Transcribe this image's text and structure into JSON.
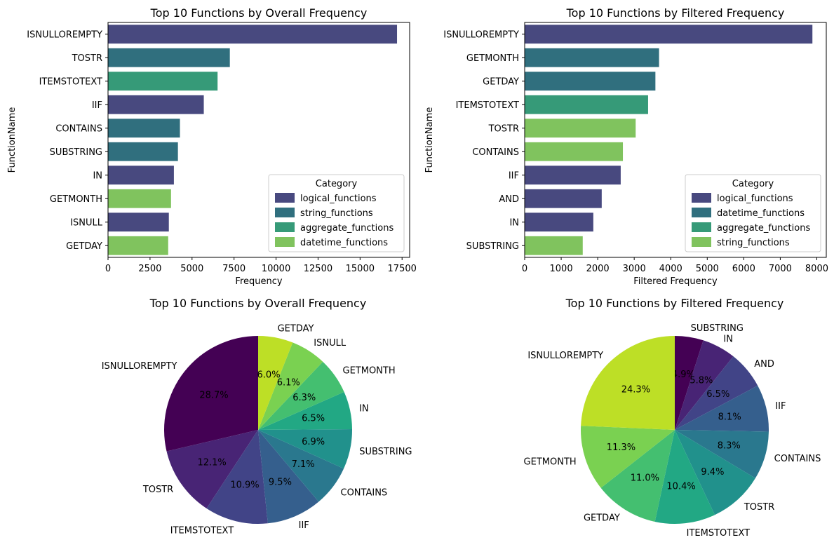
{
  "chart_data": [
    {
      "type": "bar",
      "orientation": "horizontal",
      "title": "Top 10 Functions by Overall Frequency",
      "xlabel": "Frequency",
      "ylabel": "FunctionName",
      "xlim": [
        0,
        17950
      ],
      "xticks": [
        0,
        2500,
        5000,
        7500,
        10000,
        12500,
        15000,
        17500
      ],
      "grid": false,
      "legend_title": "Category",
      "legend_position": "lower-right",
      "legend": [
        {
          "name": "logical_functions",
          "color": "#48497F"
        },
        {
          "name": "string_functions",
          "color": "#306F7E"
        },
        {
          "name": "aggregate_functions",
          "color": "#369A78"
        },
        {
          "name": "datetime_functions",
          "color": "#80C35E"
        }
      ],
      "categories": [
        "ISNULLOREMPTY",
        "TOSTR",
        "ITEMSTOTEXT",
        "IIF",
        "CONTAINS",
        "SUBSTRING",
        "IN",
        "GETMONTH",
        "ISNULL",
        "GETDAY"
      ],
      "values": [
        17200,
        7250,
        6520,
        5700,
        4280,
        4160,
        3920,
        3750,
        3620,
        3580
      ],
      "bar_categories": [
        "logical_functions",
        "string_functions",
        "aggregate_functions",
        "logical_functions",
        "string_functions",
        "string_functions",
        "logical_functions",
        "datetime_functions",
        "logical_functions",
        "datetime_functions"
      ]
    },
    {
      "type": "bar",
      "orientation": "horizontal",
      "title": "Top 10 Functions by Filtered Frequency",
      "xlabel": "Filtered Frequency",
      "ylabel": "FunctionName",
      "xlim": [
        0,
        8260
      ],
      "xticks": [
        0,
        1000,
        2000,
        3000,
        4000,
        5000,
        6000,
        7000,
        8000
      ],
      "grid": false,
      "legend_title": "Category",
      "legend_position": "lower-right",
      "legend": [
        {
          "name": "logical_functions",
          "color": "#48497F"
        },
        {
          "name": "datetime_functions",
          "color": "#306F7E"
        },
        {
          "name": "aggregate_functions",
          "color": "#369A78"
        },
        {
          "name": "string_functions",
          "color": "#80C35E"
        }
      ],
      "categories": [
        "ISNULLOREMPTY",
        "GETMONTH",
        "GETDAY",
        "ITEMSTOTEXT",
        "TOSTR",
        "CONTAINS",
        "IIF",
        "AND",
        "IN",
        "SUBSTRING"
      ],
      "values": [
        7880,
        3680,
        3580,
        3380,
        3040,
        2690,
        2630,
        2110,
        1880,
        1590
      ],
      "bar_categories": [
        "logical_functions",
        "datetime_functions",
        "datetime_functions",
        "aggregate_functions",
        "string_functions",
        "string_functions",
        "logical_functions",
        "logical_functions",
        "logical_functions",
        "string_functions"
      ]
    },
    {
      "type": "pie",
      "title": "Top 10 Functions by Overall Frequency",
      "start_angle": 90,
      "direction": "counterclockwise",
      "slices": [
        {
          "label": "ISNULLOREMPTY",
          "value": 28.7,
          "pct": "28.7%",
          "color": "#440154"
        },
        {
          "label": "TOSTR",
          "value": 12.1,
          "pct": "12.1%",
          "color": "#482475"
        },
        {
          "label": "ITEMSTOTEXT",
          "value": 10.9,
          "pct": "10.9%",
          "color": "#414487"
        },
        {
          "label": "IIF",
          "value": 9.5,
          "pct": "9.5%",
          "color": "#355F8D"
        },
        {
          "label": "CONTAINS",
          "value": 7.1,
          "pct": "7.1%",
          "color": "#2A788E"
        },
        {
          "label": "SUBSTRING",
          "value": 6.9,
          "pct": "6.9%",
          "color": "#21918C"
        },
        {
          "label": "IN",
          "value": 6.5,
          "pct": "6.5%",
          "color": "#22A884"
        },
        {
          "label": "GETMONTH",
          "value": 6.3,
          "pct": "6.3%",
          "color": "#44BF70"
        },
        {
          "label": "ISNULL",
          "value": 6.1,
          "pct": "6.1%",
          "color": "#7AD151"
        },
        {
          "label": "GETDAY",
          "value": 6.0,
          "pct": "6.0%",
          "color": "#BDDF26"
        }
      ]
    },
    {
      "type": "pie",
      "title": "Top 10 Functions by Filtered Frequency",
      "start_angle": 90,
      "direction": "clockwise",
      "slices": [
        {
          "label": "SUBSTRING",
          "value": 4.9,
          "pct": "4.9%",
          "color": "#440154"
        },
        {
          "label": "IN",
          "value": 5.8,
          "pct": "5.8%",
          "color": "#482475"
        },
        {
          "label": "AND",
          "value": 6.5,
          "pct": "6.5%",
          "color": "#414487"
        },
        {
          "label": "IIF",
          "value": 8.1,
          "pct": "8.1%",
          "color": "#355F8D"
        },
        {
          "label": "CONTAINS",
          "value": 8.3,
          "pct": "8.3%",
          "color": "#2A788E"
        },
        {
          "label": "TOSTR",
          "value": 9.4,
          "pct": "9.4%",
          "color": "#21918C"
        },
        {
          "label": "ITEMSTOTEXT",
          "value": 10.4,
          "pct": "10.4%",
          "color": "#22A884"
        },
        {
          "label": "GETDAY",
          "value": 11.0,
          "pct": "11.0%",
          "color": "#44BF70"
        },
        {
          "label": "GETMONTH",
          "value": 11.3,
          "pct": "11.3%",
          "color": "#7AD151"
        },
        {
          "label": "ISNULLOREMPTY",
          "value": 24.3,
          "pct": "24.3%",
          "color": "#BDDF26"
        }
      ]
    }
  ]
}
